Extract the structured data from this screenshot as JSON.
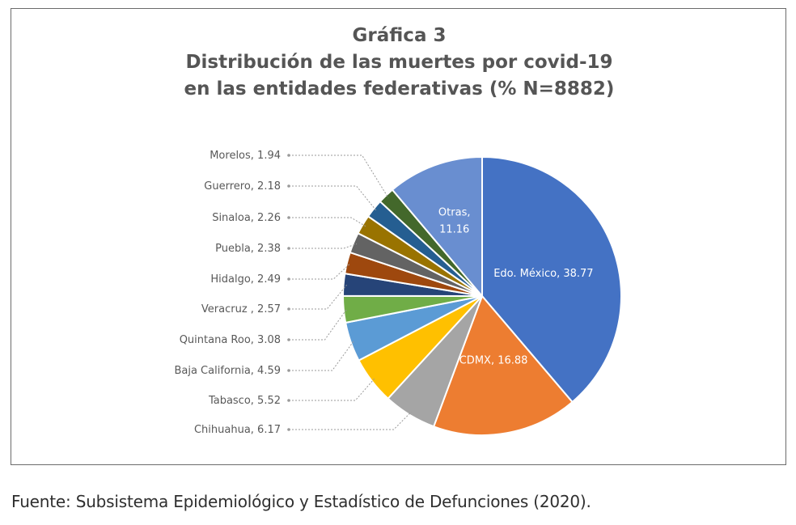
{
  "figure": {
    "label": "Gráfica 3",
    "title_line1": "Distribución de las muertes por covid-19",
    "title_line2": "en las entidades federativas (% N=8882)"
  },
  "chart_data": {
    "type": "pie",
    "title": "Distribución de las muertes por covid-19 en las entidades federativas (% N=8882)",
    "unit": "%",
    "slices": [
      {
        "label": "Edo. México",
        "value": 38.77,
        "color": "#4472C4",
        "label_position": "inside"
      },
      {
        "label": "CDMX",
        "value": 16.88,
        "color": "#ED7D31",
        "label_position": "inside"
      },
      {
        "label": "Chihuahua",
        "value": 6.17,
        "color": "#A5A5A5",
        "label_position": "leader"
      },
      {
        "label": "Tabasco",
        "value": 5.52,
        "color": "#FFC000",
        "label_position": "leader"
      },
      {
        "label": "Baja California",
        "value": 4.59,
        "color": "#5B9BD5",
        "label_position": "leader"
      },
      {
        "label": "Quintana Roo",
        "value": 3.08,
        "color": "#70AD47",
        "label_position": "leader"
      },
      {
        "label": "Veracruz ",
        "value": 2.57,
        "color": "#264478",
        "label_position": "leader"
      },
      {
        "label": "Hidalgo",
        "value": 2.49,
        "color": "#9E480E",
        "label_position": "leader"
      },
      {
        "label": "Puebla",
        "value": 2.38,
        "color": "#636363",
        "label_position": "leader"
      },
      {
        "label": "Sinaloa",
        "value": 2.26,
        "color": "#997300",
        "label_position": "leader"
      },
      {
        "label": "Guerrero",
        "value": 2.18,
        "color": "#255E91",
        "label_position": "leader"
      },
      {
        "label": "Morelos",
        "value": 1.94,
        "color": "#43682B",
        "label_position": "leader"
      },
      {
        "label": "Otras",
        "value": 11.16,
        "color": "#698ED0",
        "label_position": "inside"
      }
    ]
  },
  "source": "Fuente: Subsistema Epidemiológico y Estadístico de Defunciones (2020)."
}
